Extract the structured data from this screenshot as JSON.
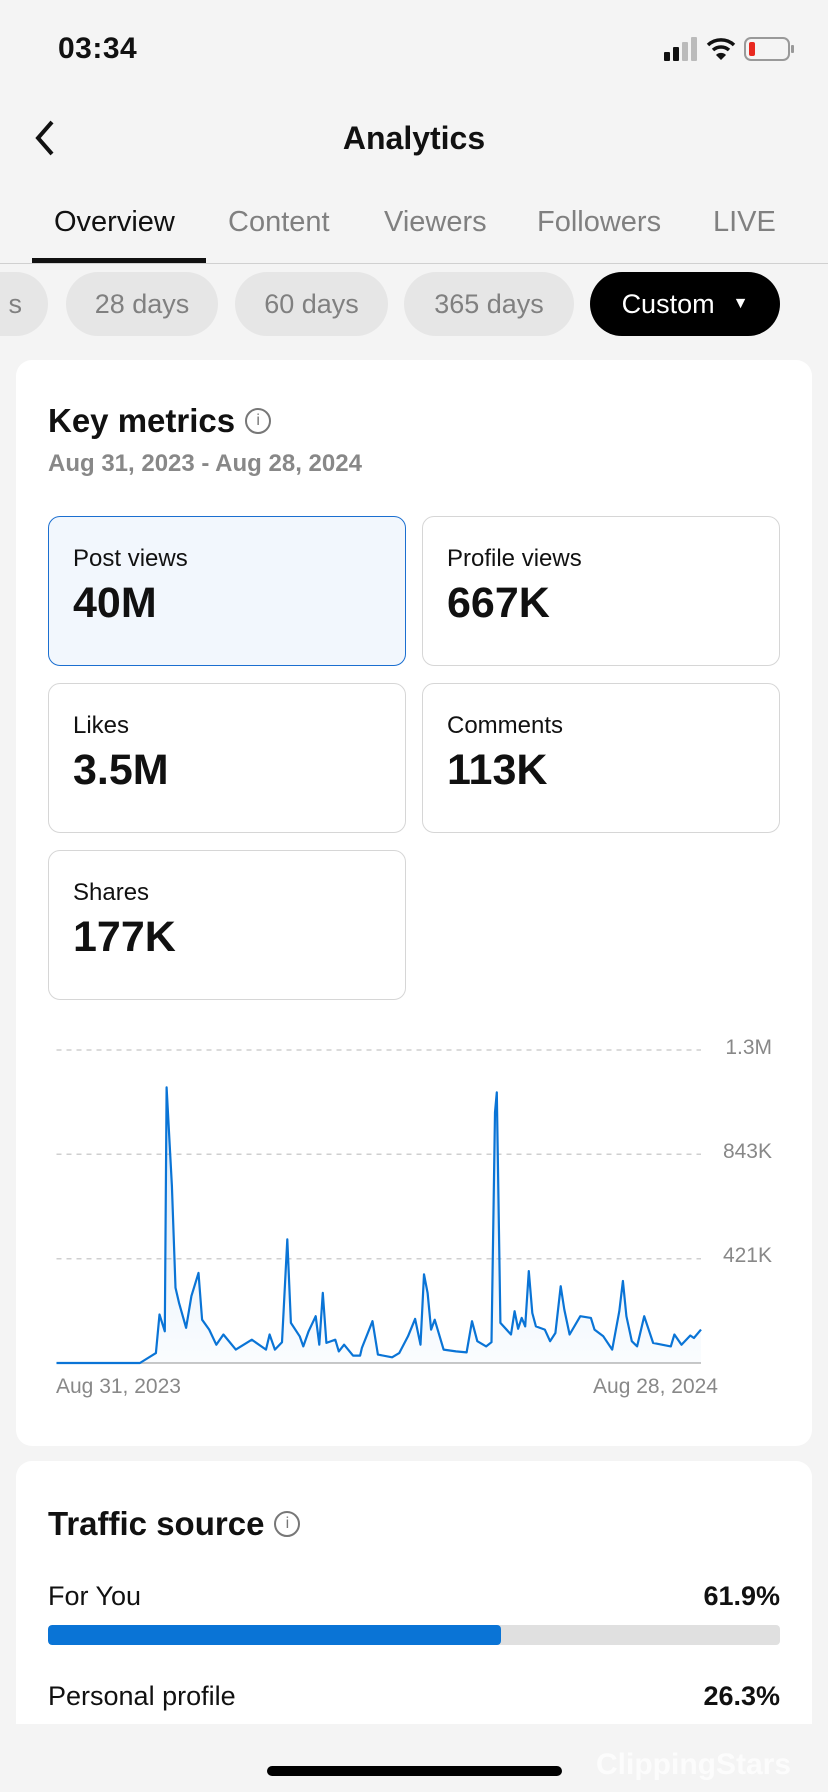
{
  "status_bar": {
    "time": "03:34",
    "battery_color": "#e8281f"
  },
  "header": {
    "title": "Analytics",
    "back_icon": "chevron-left-icon"
  },
  "tabs": [
    {
      "label": "Overview",
      "active": true
    },
    {
      "label": "Content"
    },
    {
      "label": "Viewers"
    },
    {
      "label": "Followers"
    },
    {
      "label": "LIVE"
    }
  ],
  "range_chips": [
    {
      "label": "s"
    },
    {
      "label": "28 days"
    },
    {
      "label": "60 days"
    },
    {
      "label": "365 days"
    },
    {
      "label": "Custom",
      "active": true,
      "icon": "caret-down-icon"
    }
  ],
  "key_metrics": {
    "title": "Key metrics",
    "date_range": "Aug 31, 2023 - Aug 28, 2024",
    "metrics": [
      {
        "label": "Post views",
        "value": "40M",
        "selected": true
      },
      {
        "label": "Profile views",
        "value": "667K"
      },
      {
        "label": "Likes",
        "value": "3.5M"
      },
      {
        "label": "Comments",
        "value": "113K"
      },
      {
        "label": "Shares",
        "value": "177K"
      }
    ]
  },
  "chart_data": {
    "type": "area",
    "x_tick_labels": [
      "Aug 31, 2023",
      "Aug 28, 2024"
    ],
    "y_tick_labels": [
      "421K",
      "843K",
      "1.3M"
    ],
    "y_ticks": [
      421000,
      843000,
      1264000
    ],
    "ylim": [
      0,
      1264000
    ],
    "xlim": [
      "2023-08-31",
      "2024-08-28"
    ],
    "grid": true,
    "color": "#0a74d6",
    "points": [
      [
        "2023-08-31",
        0
      ],
      [
        "2023-10-17",
        0
      ],
      [
        "2023-10-26",
        40000
      ],
      [
        "2023-10-28",
        196000
      ],
      [
        "2023-10-31",
        128000
      ],
      [
        "2023-11-01",
        1113000
      ],
      [
        "2023-11-04",
        715000
      ],
      [
        "2023-11-06",
        304000
      ],
      [
        "2023-11-08",
        243000
      ],
      [
        "2023-11-12",
        142000
      ],
      [
        "2023-11-15",
        270000
      ],
      [
        "2023-11-19",
        364000
      ],
      [
        "2023-11-21",
        175000
      ],
      [
        "2023-11-25",
        135000
      ],
      [
        "2023-11-29",
        74000
      ],
      [
        "2023-12-03",
        115000
      ],
      [
        "2023-12-10",
        54000
      ],
      [
        "2023-12-19",
        94000
      ],
      [
        "2023-12-27",
        54000
      ],
      [
        "2023-12-29",
        115000
      ],
      [
        "2024-01-01",
        54000
      ],
      [
        "2024-01-05",
        84000
      ],
      [
        "2024-01-08",
        499000
      ],
      [
        "2024-01-10",
        162000
      ],
      [
        "2024-01-15",
        108000
      ],
      [
        "2024-01-17",
        67000
      ],
      [
        "2024-01-20",
        128000
      ],
      [
        "2024-01-24",
        189000
      ],
      [
        "2024-01-26",
        74000
      ],
      [
        "2024-01-28",
        283000
      ],
      [
        "2024-01-30",
        81000
      ],
      [
        "2024-02-04",
        94000
      ],
      [
        "2024-02-06",
        47000
      ],
      [
        "2024-02-09",
        74000
      ],
      [
        "2024-02-14",
        30000
      ],
      [
        "2024-02-18",
        30000
      ],
      [
        "2024-02-19",
        61000
      ],
      [
        "2024-02-25",
        169000
      ],
      [
        "2024-02-28",
        34000
      ],
      [
        "2024-03-07",
        23000
      ],
      [
        "2024-03-11",
        40000
      ],
      [
        "2024-03-16",
        108000
      ],
      [
        "2024-03-20",
        178000
      ],
      [
        "2024-03-23",
        74000
      ],
      [
        "2024-03-25",
        358000
      ],
      [
        "2024-03-27",
        283000
      ],
      [
        "2024-03-29",
        135000
      ],
      [
        "2024-03-31",
        175000
      ],
      [
        "2024-04-05",
        54000
      ],
      [
        "2024-04-12",
        47000
      ],
      [
        "2024-04-18",
        43000
      ],
      [
        "2024-04-21",
        169000
      ],
      [
        "2024-04-24",
        88000
      ],
      [
        "2024-04-29",
        67000
      ],
      [
        "2024-05-02",
        84000
      ],
      [
        "2024-05-04",
        1012000
      ],
      [
        "2024-05-05",
        1093000
      ],
      [
        "2024-05-07",
        162000
      ],
      [
        "2024-05-13",
        115000
      ],
      [
        "2024-05-15",
        209000
      ],
      [
        "2024-05-17",
        138000
      ],
      [
        "2024-05-19",
        182000
      ],
      [
        "2024-05-21",
        148000
      ],
      [
        "2024-05-23",
        371000
      ],
      [
        "2024-05-25",
        202000
      ],
      [
        "2024-05-27",
        148000
      ],
      [
        "2024-06-01",
        135000
      ],
      [
        "2024-06-04",
        88000
      ],
      [
        "2024-06-07",
        121000
      ],
      [
        "2024-06-10",
        310000
      ],
      [
        "2024-06-12",
        216000
      ],
      [
        "2024-06-15",
        115000
      ],
      [
        "2024-06-21",
        189000
      ],
      [
        "2024-06-27",
        182000
      ],
      [
        "2024-06-29",
        135000
      ],
      [
        "2024-07-04",
        108000
      ],
      [
        "2024-07-09",
        54000
      ],
      [
        "2024-07-13",
        209000
      ],
      [
        "2024-07-15",
        331000
      ],
      [
        "2024-07-17",
        189000
      ],
      [
        "2024-07-20",
        88000
      ],
      [
        "2024-07-23",
        67000
      ],
      [
        "2024-07-27",
        189000
      ],
      [
        "2024-08-01",
        81000
      ],
      [
        "2024-08-11",
        67000
      ],
      [
        "2024-08-13",
        115000
      ],
      [
        "2024-08-17",
        74000
      ],
      [
        "2024-08-22",
        111000
      ],
      [
        "2024-08-24",
        101000
      ],
      [
        "2024-08-28",
        135000
      ]
    ]
  },
  "traffic_source": {
    "title": "Traffic source",
    "bar_color": "#0a74d6",
    "rows": [
      {
        "label": "For You",
        "value": "61.9%",
        "percent": 61.9
      },
      {
        "label": "Personal profile",
        "value": "26.3%",
        "percent": 26.3
      }
    ]
  },
  "watermark": "ClippingStars"
}
